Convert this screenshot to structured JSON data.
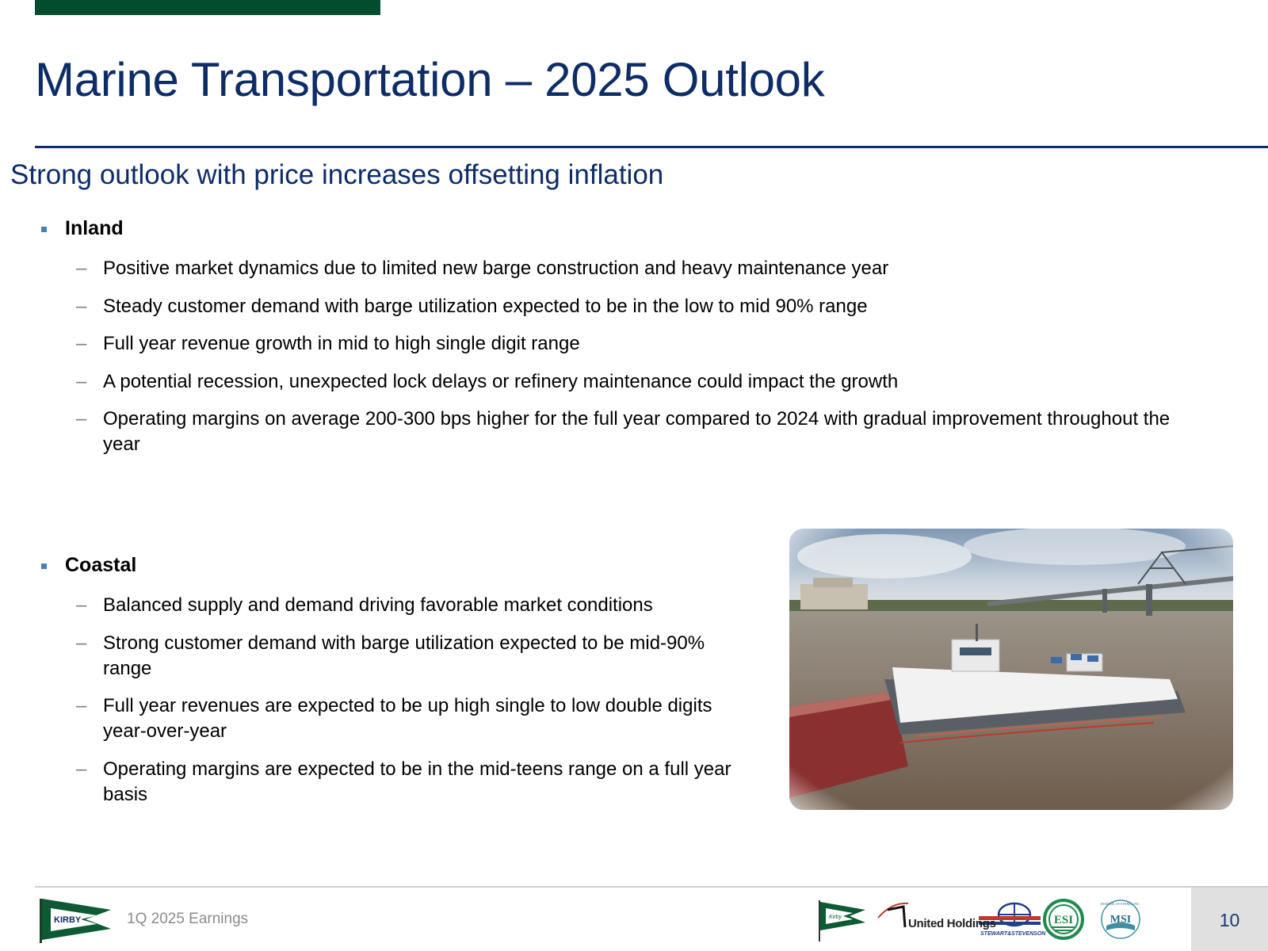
{
  "slide": {
    "title": "Marine Transportation – 2025 Outlook",
    "subtitle": "Strong outlook with price increases offsetting inflation",
    "accent_color": "#014d2e",
    "title_color": "#0e2d66"
  },
  "inland": {
    "label": "Inland",
    "items": [
      "Positive market dynamics due to limited new barge construction and heavy maintenance year",
      "Steady customer demand with barge utilization expected to be in the low to mid 90% range",
      "Full year revenue growth in mid to high single digit range",
      "A potential recession, unexpected lock delays or refinery maintenance could impact the growth",
      "Operating margins on average 200-300 bps higher for the full year compared to 2024 with gradual improvement throughout the year"
    ]
  },
  "coastal": {
    "label": "Coastal",
    "items": [
      "Balanced supply and demand driving favorable market conditions",
      "Strong customer demand with barge utilization expected to be mid-90% range",
      "Full year revenues are expected to be up high single to low double digits year-over-year",
      "Operating margins are expected to be in the mid-teens range on a full year basis"
    ]
  },
  "footer": {
    "brand": "KIRBY",
    "label": "1Q 2025 Earnings",
    "logos": {
      "kirby_small": "Kirby",
      "united_holdings": "United Holdings",
      "stewart_stevenson": "STEWART&STEVENSON",
      "esi": "ESI",
      "msi": "MSI",
      "msi_ring": "MARINE SYSTEMS, INC."
    },
    "page_number": "10"
  }
}
